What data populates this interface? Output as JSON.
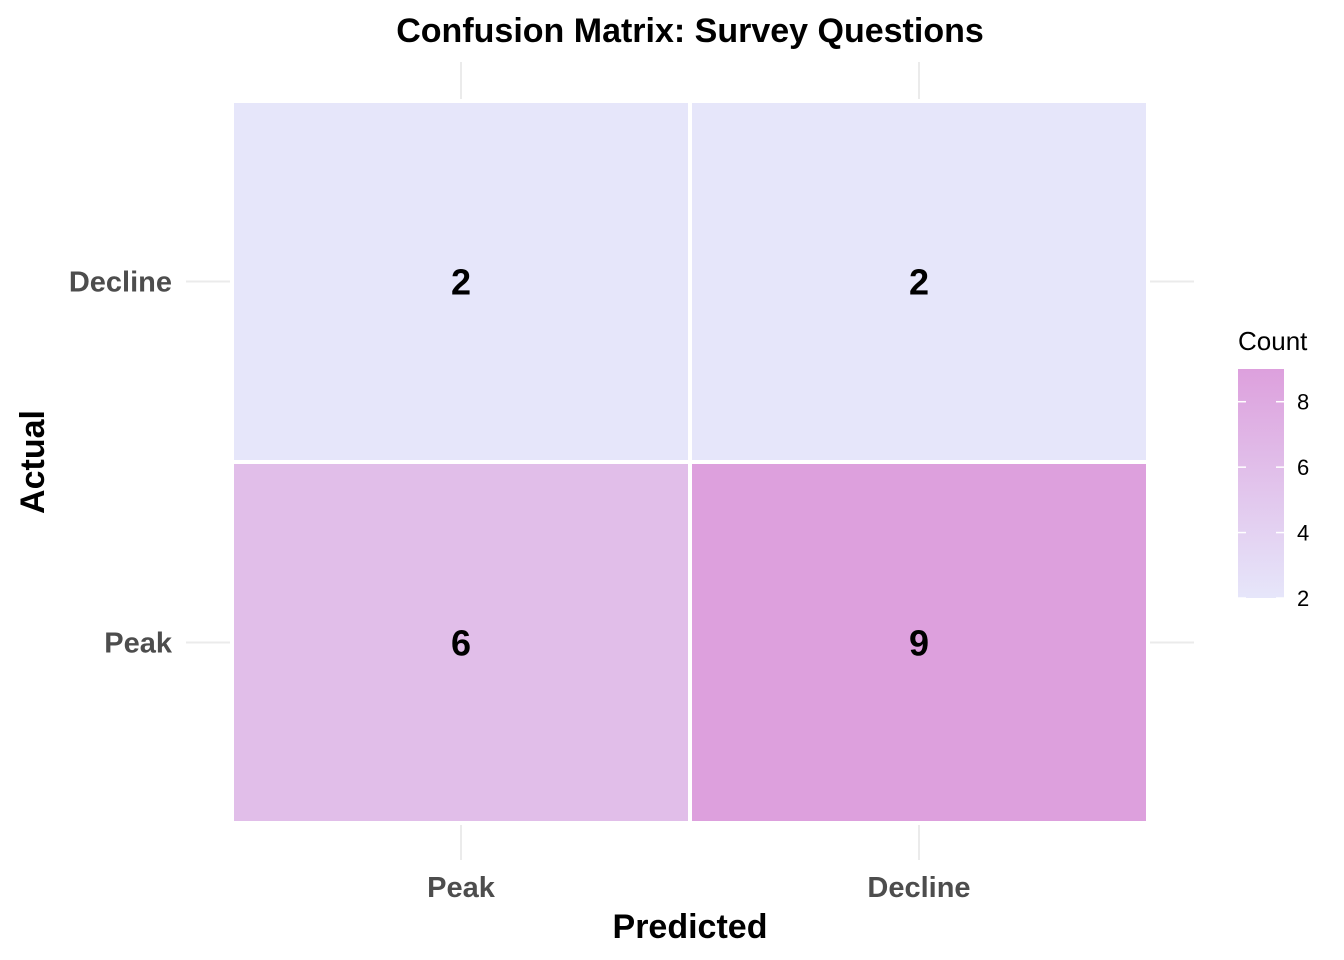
{
  "chart_data": {
    "type": "heatmap",
    "title": "Confusion Matrix: Survey Questions",
    "xlabel": "Predicted",
    "ylabel": "Actual",
    "x_categories": [
      "Peak",
      "Decline"
    ],
    "y_categories": [
      "Decline",
      "Peak"
    ],
    "cells": [
      {
        "actual": "Decline",
        "predicted": "Peak",
        "value": 2
      },
      {
        "actual": "Decline",
        "predicted": "Decline",
        "value": 2
      },
      {
        "actual": "Peak",
        "predicted": "Peak",
        "value": 6
      },
      {
        "actual": "Peak",
        "predicted": "Decline",
        "value": 9
      }
    ],
    "legend": {
      "title": "Count",
      "ticks": [
        2,
        4,
        6,
        8
      ],
      "range": [
        2,
        9
      ],
      "placement": "right"
    },
    "colors": {
      "low": "#e6e6fa",
      "high": "#dda0dd",
      "grid": "#ebebeb",
      "cell_border": "#ffffff"
    },
    "grid": true
  }
}
